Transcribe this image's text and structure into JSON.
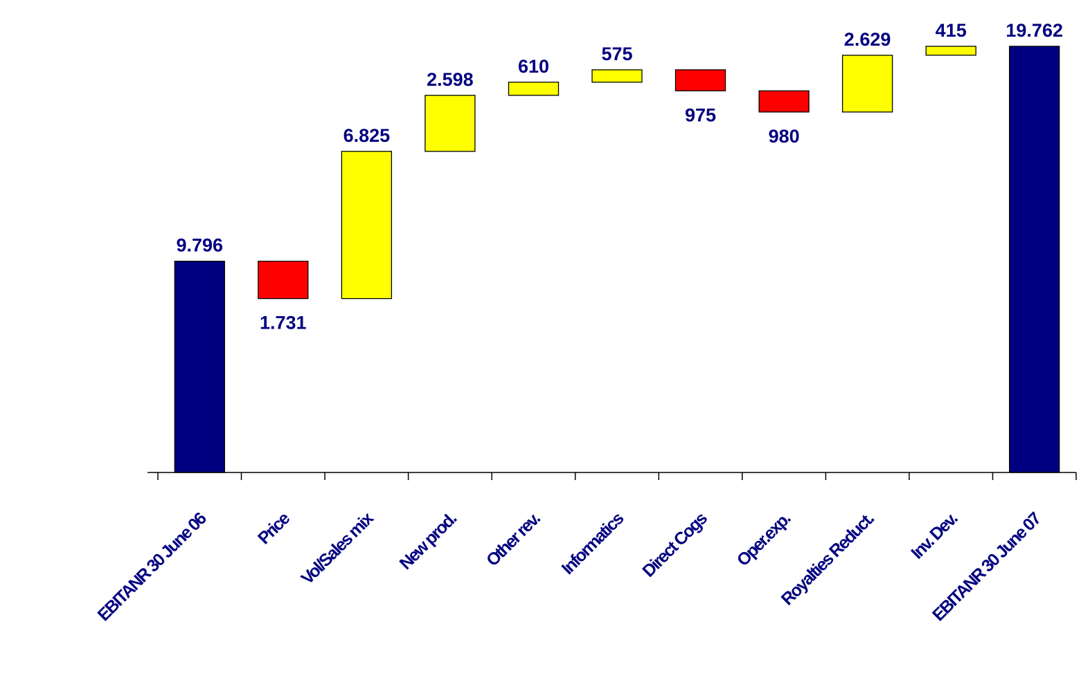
{
  "chart_data": {
    "type": "bar",
    "subtype": "waterfall",
    "title": "",
    "xlabel": "",
    "ylabel": "",
    "ylim": [
      0,
      20000
    ],
    "grid": false,
    "legend": "none",
    "categories": [
      "EBITANR 30 June 06",
      "Price",
      "Vol/Sales mix",
      "New prod.",
      "Other rev.",
      "Informatics",
      "Direct Cogs",
      "Oper.exp.",
      "Royalties Reduct.",
      "Inv. Dev.",
      "EBITANR 30 June 07"
    ],
    "steps": [
      {
        "kind": "total",
        "value": 9796,
        "label": "9.796"
      },
      {
        "kind": "decrease",
        "value": 1731,
        "label": "1.731"
      },
      {
        "kind": "increase",
        "value": 6825,
        "label": "6.825"
      },
      {
        "kind": "increase",
        "value": 2598,
        "label": "2.598"
      },
      {
        "kind": "increase",
        "value": 610,
        "label": "610"
      },
      {
        "kind": "increase",
        "value": 575,
        "label": "575"
      },
      {
        "kind": "decrease",
        "value": 975,
        "label": "975"
      },
      {
        "kind": "decrease",
        "value": 980,
        "label": "980"
      },
      {
        "kind": "increase",
        "value": 2629,
        "label": "2.629"
      },
      {
        "kind": "increase",
        "value": 415,
        "label": "415"
      },
      {
        "kind": "total",
        "value": 19762,
        "label": "19.762"
      }
    ],
    "colors": {
      "total": "#000080",
      "increase": "#FFFF00",
      "decrease": "#FF0000",
      "labels": "#000080",
      "axis": "#000000"
    }
  }
}
